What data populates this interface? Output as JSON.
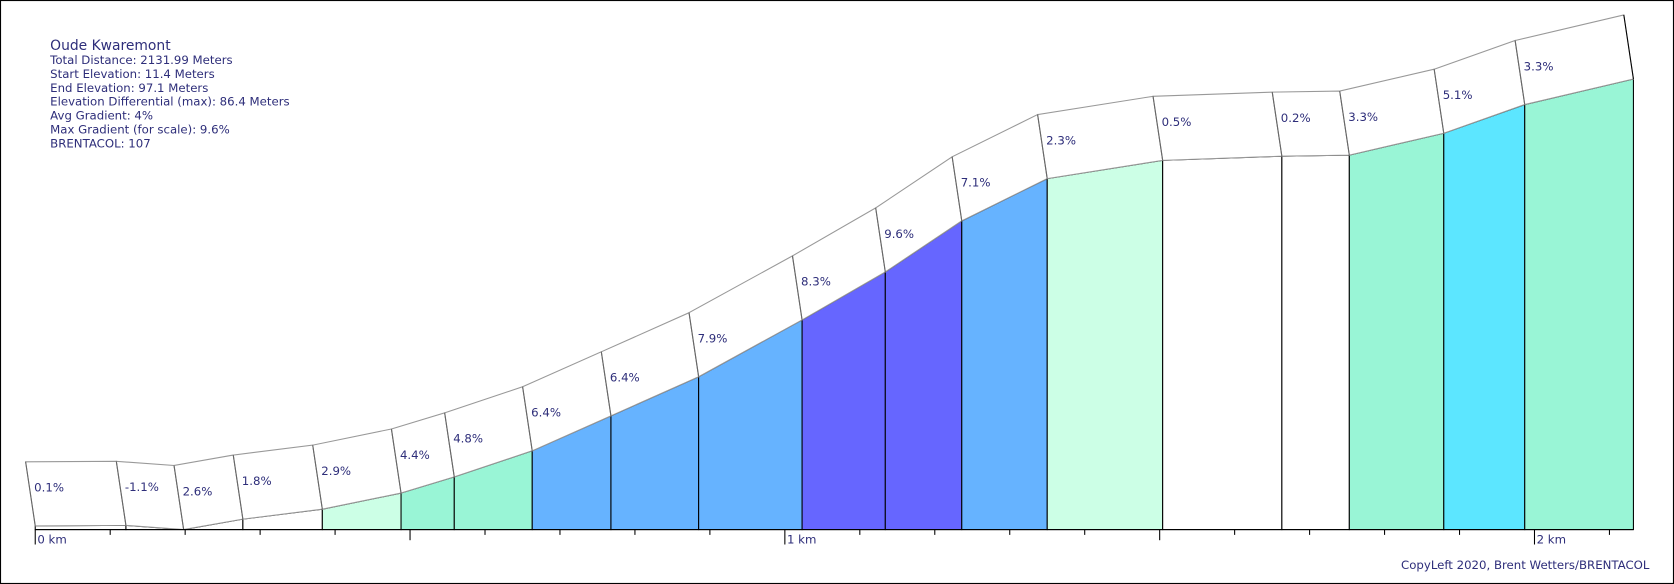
{
  "chart_data": {
    "type": "elevation-profile",
    "title": "Oude Kwaremont",
    "info": [
      "Total Distance: 2131.99 Meters",
      "Start Elevation: 11.4 Meters",
      "End Elevation: 97.1 Meters",
      "Elevation Differential (max): 86.4 Meters",
      "Avg Gradient: 4%",
      "Max Gradient (for scale): 9.6%",
      "BRENTACOL: 107"
    ],
    "footer": "CopyLeft 2020, Brent Wetters/BRENTACOL",
    "x": [
      0,
      121,
      198,
      277,
      383,
      488,
      559,
      663,
      768,
      885,
      1023,
      1134,
      1236,
      1350,
      1504,
      1663,
      1753,
      1879,
      1987,
      2131.99
    ],
    "elevation": [
      11.4,
      11.5,
      10.7,
      12.7,
      14.6,
      17.7,
      20.8,
      25.8,
      32.5,
      40.0,
      50.9,
      60.1,
      69.9,
      78.0,
      81.5,
      82.3,
      82.5,
      86.7,
      92.2,
      97.1
    ],
    "gradients": [
      0.1,
      -1.1,
      2.6,
      1.8,
      2.9,
      4.4,
      4.8,
      6.4,
      6.4,
      7.9,
      8.3,
      9.6,
      7.1,
      2.3,
      0.5,
      0.2,
      3.3,
      5.1,
      3.3
    ],
    "value_labels": [
      "0.1%",
      "-1.1%",
      "2.6%",
      "1.8%",
      "2.9%",
      "4.4%",
      "4.8%",
      "6.4%",
      "6.4%",
      "7.9%",
      "8.3%",
      "9.6%",
      "7.1%",
      "2.3%",
      "0.5%",
      "0.2%",
      "3.3%",
      "5.1%",
      "3.3%"
    ],
    "colors": [
      "#ffffff",
      "#ffffff",
      "#ffffff",
      "#ffffff",
      "#ccffe6",
      "#99f5d6",
      "#99f5d6",
      "#66b3ff",
      "#66b3ff",
      "#66b3ff",
      "#6666ff",
      "#6666ff",
      "#66b3ff",
      "#ccffe6",
      "#ffffff",
      "#ffffff",
      "#99f5d6",
      "#5ce6ff",
      "#99f5d6"
    ],
    "xlim": [
      0,
      2131.99
    ],
    "ylim": [
      10.7,
      97.1
    ],
    "xticks": [
      {
        "value": 0,
        "label": "0 km"
      },
      {
        "value": 1000,
        "label": "1 km"
      },
      {
        "value": 2000,
        "label": "2 km"
      }
    ],
    "minor_xticks": [
      100,
      200,
      300,
      400,
      500,
      600,
      700,
      800,
      900,
      1100,
      1200,
      1300,
      1400,
      1500,
      1600,
      1700,
      1800,
      1900,
      2100
    ]
  }
}
